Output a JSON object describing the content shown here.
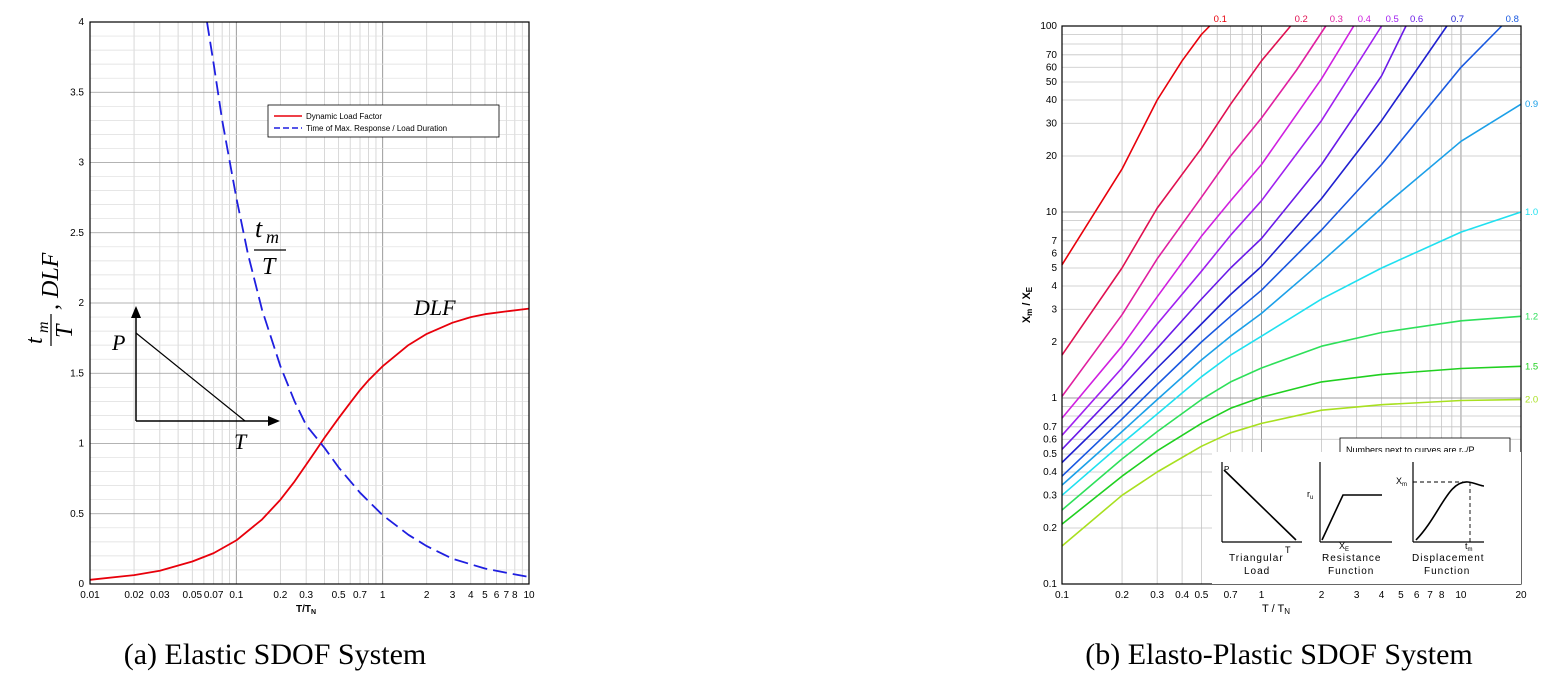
{
  "captions": {
    "a": "(a) Elastic SDOF System",
    "b": "(b) Elasto-Plastic SDOF System"
  },
  "chart_data": [
    {
      "type": "line",
      "panel": "a",
      "xlabel": "T/T",
      "xlabel_sub": "N",
      "ylabel": "t_m/T, DLF",
      "xscale": "log",
      "xlim": [
        0.01,
        10
      ],
      "ylim": [
        0,
        4
      ],
      "x_ticks": [
        0.01,
        0.02,
        0.03,
        0.05,
        0.07,
        0.1,
        0.2,
        0.3,
        0.5,
        0.7,
        1,
        2,
        3,
        4,
        5,
        6,
        7,
        8,
        10
      ],
      "x_tick_labels": [
        "0.01",
        "0.02",
        "0.03",
        "0.05",
        "0.07",
        "0.1",
        "0.2",
        "0.3",
        "0.5",
        "0.7",
        "1",
        "2",
        "3",
        "4",
        "5",
        "6",
        "7",
        "8",
        "10"
      ],
      "y_ticks": [
        0,
        0.5,
        1,
        1.5,
        2,
        2.5,
        3,
        3.5,
        4
      ],
      "y_tick_labels": [
        "0",
        "0.5",
        "1",
        "1.5",
        "2",
        "2.5",
        "3",
        "3.5",
        "4"
      ],
      "grid": true,
      "legend_position": "top-right",
      "series": [
        {
          "name": "Dynamic Load Factor",
          "color": "#e8000b",
          "dash": "solid",
          "x": [
            0.01,
            0.02,
            0.03,
            0.05,
            0.07,
            0.1,
            0.15,
            0.2,
            0.25,
            0.3,
            0.35,
            0.4,
            0.5,
            0.6,
            0.7,
            0.8,
            1,
            1.5,
            2,
            3,
            4,
            5,
            7,
            10
          ],
          "y": [
            0.03,
            0.063,
            0.095,
            0.16,
            0.22,
            0.31,
            0.46,
            0.6,
            0.73,
            0.85,
            0.95,
            1.04,
            1.18,
            1.29,
            1.38,
            1.45,
            1.55,
            1.7,
            1.78,
            1.86,
            1.9,
            1.92,
            1.94,
            1.96
          ]
        },
        {
          "name": "Time of Max. Response / Load Duration",
          "color": "#1f1fe0",
          "dash": "dashed",
          "x": [
            0.063,
            0.07,
            0.08,
            0.1,
            0.12,
            0.15,
            0.2,
            0.25,
            0.3,
            0.4,
            0.5,
            0.7,
            1,
            1.5,
            2,
            3,
            4,
            5,
            7,
            10
          ],
          "y": [
            4.0,
            3.7,
            3.3,
            2.75,
            2.35,
            1.95,
            1.55,
            1.3,
            1.13,
            0.97,
            0.83,
            0.65,
            0.49,
            0.35,
            0.27,
            0.18,
            0.14,
            0.11,
            0.08,
            0.05
          ]
        }
      ],
      "annotations": {
        "tm_num": "t",
        "tm_sub": "m",
        "tm_den": "T",
        "dlf": "DLF",
        "load_p": "P",
        "load_t": "T"
      }
    },
    {
      "type": "line",
      "panel": "b",
      "xlabel": "T / T",
      "xlabel_sub": "N",
      "ylabel": "X",
      "ylabel_sub1": "m",
      "ylabel_mid": " / X",
      "ylabel_sub2": "E",
      "xscale": "log",
      "yscale": "log",
      "xlim": [
        0.1,
        20
      ],
      "ylim": [
        0.1,
        100
      ],
      "x_ticks": [
        0.1,
        0.2,
        0.3,
        0.4,
        0.5,
        0.7,
        1,
        2,
        3,
        4,
        5,
        6,
        7,
        8,
        10,
        20
      ],
      "x_tick_labels": [
        "0.1",
        "0.2",
        "0.3",
        "0.4",
        "0.5",
        "0.7",
        "1",
        "2",
        "3",
        "4",
        "5",
        "6",
        "7",
        "8",
        "10",
        "20"
      ],
      "y_ticks": [
        0.1,
        0.2,
        0.3,
        0.4,
        0.5,
        0.6,
        0.7,
        1,
        2,
        3,
        4,
        5,
        6,
        7,
        10,
        20,
        30,
        40,
        50,
        60,
        70,
        100
      ],
      "y_tick_labels": [
        "0.1",
        "0.2",
        "0.3",
        "0.4",
        "0.5",
        "0.6",
        "0.7",
        "1",
        "2",
        "3",
        "4",
        "5",
        "6",
        "7",
        "10",
        "20",
        "30",
        "40",
        "50",
        "60",
        "70",
        "100"
      ],
      "grid": true,
      "note": "Numbers next to curves are r",
      "note_sub": "u",
      "note_end": "/P",
      "series": [
        {
          "name": "0.1",
          "color": "#e8000b",
          "x": [
            0.1,
            0.2,
            0.3,
            0.4,
            0.5,
            0.55
          ],
          "y": [
            5.2,
            17,
            40,
            65,
            90,
            100
          ]
        },
        {
          "name": "0.2",
          "color": "#e01050",
          "x": [
            0.1,
            0.2,
            0.3,
            0.5,
            0.7,
            1,
            1.4
          ],
          "y": [
            1.7,
            5,
            10.5,
            22,
            38,
            65,
            100
          ]
        },
        {
          "name": "0.3",
          "color": "#e020a0",
          "x": [
            0.1,
            0.2,
            0.3,
            0.5,
            0.7,
            1,
            1.5,
            2.1
          ],
          "y": [
            1.02,
            2.8,
            5.6,
            12,
            20,
            32,
            58,
            100
          ]
        },
        {
          "name": "0.4",
          "color": "#d020e0",
          "x": [
            0.1,
            0.2,
            0.3,
            0.5,
            0.7,
            1,
            2,
            2.9
          ],
          "y": [
            0.78,
            1.9,
            3.5,
            7.4,
            11.5,
            18,
            52,
            100
          ]
        },
        {
          "name": "0.5",
          "color": "#a020f0",
          "x": [
            0.1,
            0.2,
            0.3,
            0.5,
            0.7,
            1,
            2,
            4
          ],
          "y": [
            0.63,
            1.45,
            2.5,
            4.8,
            7.5,
            11.5,
            31,
            100
          ]
        },
        {
          "name": "0.6",
          "color": "#6a1ae8",
          "x": [
            0.1,
            0.2,
            0.3,
            0.5,
            0.7,
            1,
            2,
            4,
            5.3
          ],
          "y": [
            0.53,
            1.15,
            1.85,
            3.4,
            5,
            7.2,
            18,
            54,
            100
          ]
        },
        {
          "name": "0.7",
          "color": "#2020d0",
          "x": [
            0.1,
            0.2,
            0.3,
            0.5,
            0.7,
            1,
            2,
            4,
            8.5
          ],
          "y": [
            0.45,
            0.93,
            1.45,
            2.5,
            3.6,
            5.1,
            11.8,
            31,
            100
          ]
        },
        {
          "name": "0.8",
          "color": "#1858e0",
          "x": [
            0.1,
            0.2,
            0.3,
            0.5,
            0.7,
            1,
            2,
            4,
            10,
            16
          ],
          "y": [
            0.38,
            0.77,
            1.18,
            2,
            2.75,
            3.8,
            8,
            18,
            60,
            100
          ]
        },
        {
          "name": "0.9",
          "color": "#1ca0e8",
          "x": [
            0.1,
            0.2,
            0.3,
            0.5,
            0.7,
            1,
            2,
            4,
            10,
            20
          ],
          "y": [
            0.34,
            0.66,
            0.98,
            1.6,
            2.15,
            2.85,
            5.4,
            10.5,
            24,
            38
          ]
        },
        {
          "name": "1.0",
          "color": "#20e0f0",
          "x": [
            0.1,
            0.2,
            0.3,
            0.5,
            0.7,
            1,
            2,
            4,
            10,
            20
          ],
          "y": [
            0.3,
            0.57,
            0.82,
            1.3,
            1.7,
            2.15,
            3.4,
            5,
            7.8,
            10
          ]
        },
        {
          "name": "1.2",
          "color": "#2ee05a",
          "x": [
            0.1,
            0.2,
            0.3,
            0.5,
            0.7,
            1,
            2,
            4,
            10,
            20
          ],
          "y": [
            0.25,
            0.47,
            0.66,
            0.98,
            1.22,
            1.45,
            1.9,
            2.25,
            2.6,
            2.75
          ]
        },
        {
          "name": "1.5",
          "color": "#20d020",
          "x": [
            0.1,
            0.2,
            0.3,
            0.5,
            0.7,
            1,
            2,
            4,
            10,
            20
          ],
          "y": [
            0.21,
            0.38,
            0.52,
            0.73,
            0.88,
            1.01,
            1.22,
            1.34,
            1.44,
            1.48
          ]
        },
        {
          "name": "2.0",
          "color": "#a8e020",
          "x": [
            0.1,
            0.2,
            0.3,
            0.5,
            0.7,
            1,
            2,
            4,
            10,
            20
          ],
          "y": [
            0.16,
            0.3,
            0.4,
            0.55,
            0.65,
            0.73,
            0.86,
            0.92,
            0.97,
            0.98
          ]
        }
      ],
      "insets": {
        "inset1_p": "P",
        "inset1_t": "T",
        "inset1_title1": "Triangular",
        "inset1_title2": "Load",
        "inset2_ru": "r",
        "inset2_ru_sub": "u",
        "inset2_xe": "X",
        "inset2_xe_sub": "E",
        "inset2_title1": "Resistance",
        "inset2_title2": "Function",
        "inset3_xm": "X",
        "inset3_xm_sub": "m",
        "inset3_tm": "t",
        "inset3_tm_sub": "m",
        "inset3_title1": "Displacement",
        "inset3_title2": "Function"
      }
    }
  ]
}
